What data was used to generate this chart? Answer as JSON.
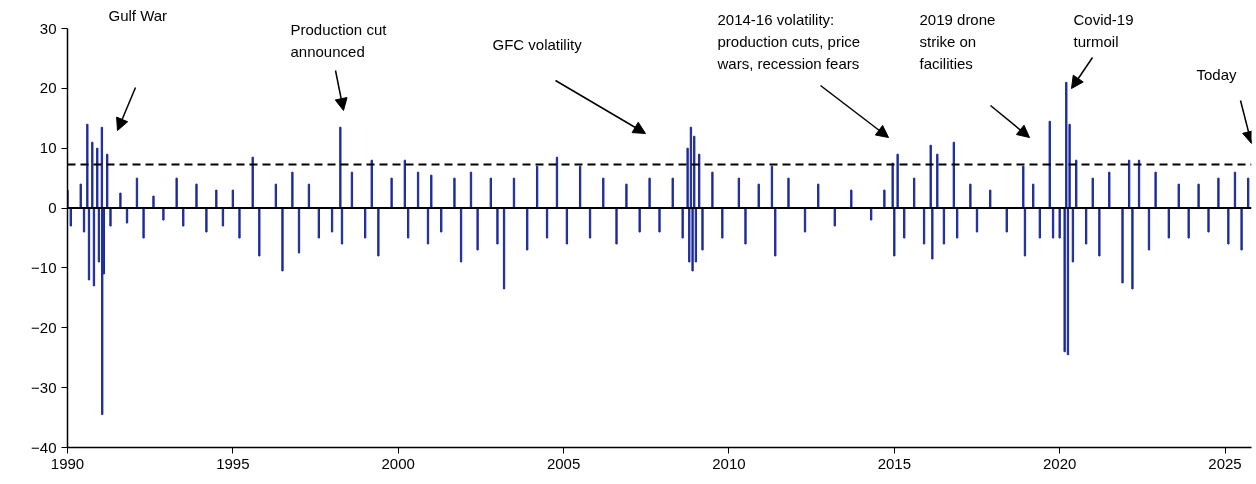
{
  "chart_data": {
    "type": "bar",
    "x": [
      1990.0,
      1990.1,
      1990.4,
      1990.5,
      1990.6,
      1990.65,
      1990.75,
      1990.8,
      1990.9,
      1990.95,
      1991.04,
      1991.05,
      1991.1,
      1991.2,
      1991.3,
      1991.6,
      1991.8,
      1992.1,
      1992.3,
      1992.6,
      1992.9,
      1993.3,
      1993.5,
      1993.9,
      1994.2,
      1994.5,
      1994.7,
      1995.0,
      1995.2,
      1995.6,
      1995.8,
      1996.3,
      1996.5,
      1996.8,
      1997.0,
      1997.3,
      1997.6,
      1998.0,
      1998.25,
      1998.3,
      1998.6,
      1999.0,
      1999.2,
      1999.4,
      1999.8,
      2000.2,
      2000.3,
      2000.6,
      2000.9,
      2001.0,
      2001.3,
      2001.7,
      2001.9,
      2002.2,
      2002.4,
      2002.8,
      2003.0,
      2003.2,
      2003.5,
      2003.9,
      2004.2,
      2004.5,
      2004.8,
      2005.1,
      2005.5,
      2005.8,
      2006.2,
      2006.6,
      2006.9,
      2007.3,
      2007.6,
      2007.9,
      2008.3,
      2008.6,
      2008.75,
      2008.8,
      2008.85,
      2008.9,
      2008.95,
      2009.0,
      2009.1,
      2009.2,
      2009.5,
      2009.8,
      2010.3,
      2010.5,
      2010.9,
      2011.3,
      2011.4,
      2011.8,
      2012.3,
      2012.7,
      2013.2,
      2013.7,
      2014.3,
      2014.7,
      2014.95,
      2015.0,
      2015.1,
      2015.3,
      2015.6,
      2015.9,
      2016.1,
      2016.15,
      2016.3,
      2016.5,
      2016.8,
      2016.9,
      2017.3,
      2017.5,
      2017.9,
      2018.4,
      2018.9,
      2018.95,
      2019.2,
      2019.4,
      2019.7,
      2019.8,
      2020.0,
      2020.15,
      2020.2,
      2020.25,
      2020.3,
      2020.4,
      2020.5,
      2020.8,
      2021.0,
      2021.2,
      2021.5,
      2021.9,
      2022.1,
      2022.2,
      2022.4,
      2022.7,
      2022.9,
      2023.3,
      2023.6,
      2023.9,
      2024.2,
      2024.5,
      2024.8,
      2025.1,
      2025.3,
      2025.5,
      2025.7
    ],
    "series": [
      {
        "color": "#1c2a9a",
        "values": [
          3,
          -3,
          4,
          -4,
          14,
          -12,
          11,
          -13,
          10,
          -9,
          13.5,
          -34.5,
          -11,
          9,
          -3,
          2.5,
          -2.5,
          5,
          -5,
          2,
          -2,
          5,
          -3,
          4,
          -4,
          3,
          -3,
          3,
          -5,
          8.5,
          -8,
          4,
          -10.5,
          6,
          -7.5,
          4,
          -5,
          -4,
          13.5,
          -6,
          6,
          -5,
          8,
          -8,
          5,
          8,
          -5,
          6,
          -6,
          5.5,
          -4,
          5,
          -9,
          6,
          -7,
          5,
          -6,
          -13.5,
          5,
          -7,
          7,
          -5,
          8.5,
          -6,
          7,
          -5,
          5,
          -6,
          4,
          -4,
          5,
          -4,
          5,
          -5,
          10,
          -9,
          13.5,
          -10.5,
          12,
          -9,
          9,
          -7,
          6,
          -5,
          5,
          -6,
          4,
          7,
          -8,
          5,
          -4,
          4,
          -3,
          3,
          -2,
          3,
          7.5,
          -8,
          9,
          -5,
          5,
          -6,
          10.5,
          -8.5,
          9,
          -6,
          11,
          -5,
          4,
          -4,
          3,
          -4,
          7,
          -8,
          4,
          -5,
          14.5,
          -5,
          -5,
          -24,
          21,
          -24.5,
          14,
          -9,
          8,
          -6,
          5,
          -8,
          6,
          -12.5,
          8,
          -13.5,
          8,
          -7,
          6,
          -5,
          4,
          -5,
          4,
          -4,
          5,
          -6,
          6,
          -7,
          5
        ]
      }
    ],
    "xlim": [
      1990,
      2025.8
    ],
    "ylim": [
      -40,
      30
    ],
    "xticks": [
      1990,
      1995,
      2000,
      2005,
      2010,
      2015,
      2020,
      2025
    ],
    "yticks": [
      -40,
      -30,
      -20,
      -10,
      0,
      10,
      20,
      30
    ],
    "grid": false,
    "ref_lines": [
      {
        "axis": "y",
        "value": 0,
        "color": "#000000",
        "line_style": "solid"
      },
      {
        "axis": "y",
        "value": 7.3,
        "color": "#000000",
        "line_style": "dashed"
      }
    ],
    "annotations": [
      "Gulf War",
      "Production cut\nannounced",
      "GFC volatility",
      "2014-16 volatility:\nproduction cuts, price\nwars, recession fears",
      "2019 drone\nstrike on\nfacilities",
      "Covid-19\nturmoil",
      "Today"
    ]
  }
}
